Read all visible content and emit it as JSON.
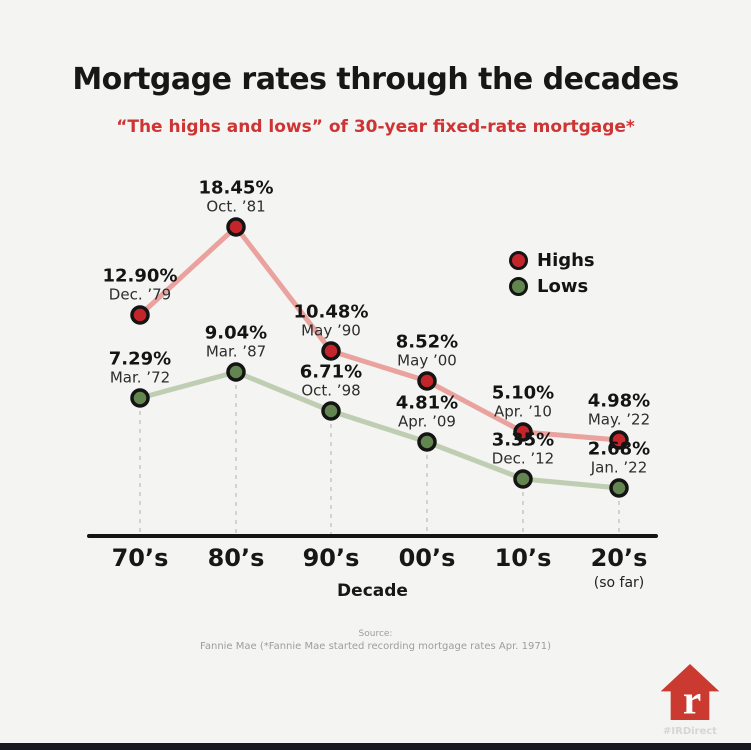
{
  "page": {
    "title": "Mortgage rates through the decades",
    "subtitle": "“The highs and lows” of 30-year fixed-rate mortgage*",
    "source_label": "Source:",
    "source_text": "Fannie Mae (*Fannie Mae started recording mortgage rates Apr. 1971)",
    "hashtag": "#IRDirect",
    "logo_letter": "r"
  },
  "colors": {
    "background": "#f4f4f2",
    "title_text": "#171717",
    "subtitle_red": "#cf3434",
    "highs_point": "#c4252b",
    "highs_line": "#e9a29d",
    "lows_point": "#63854f",
    "lows_line": "#bfcdb2",
    "point_outline": "#141414",
    "axis": "#141414",
    "dashed_guide": "#c6c6c6",
    "source_gray": "#9d9d9d",
    "logo_red": "#cb3a30",
    "bottom_bar": "#181821"
  },
  "chart_data": {
    "type": "line",
    "xlabel": "Decade",
    "categories": [
      "70’s",
      "80’s",
      "90’s",
      "00’s",
      "10’s",
      "20’s"
    ],
    "x_axis_note": "(so far)",
    "grid": "dashed-vertical-guides",
    "legend_position": "upper-right",
    "ylim": [
      0,
      20
    ],
    "series": [
      {
        "name": "Highs",
        "color": "#c4252b",
        "line_color": "#e9a29d",
        "values": [
          12.9,
          18.45,
          10.48,
          8.52,
          5.1,
          4.98
        ],
        "labels": [
          "12.90%",
          "18.45%",
          "10.48%",
          "8.52%",
          "5.10%",
          "4.98%"
        ],
        "dates": [
          "Dec. ’79",
          "Oct. ’81",
          "May ’90",
          "May ’00",
          "Apr. ’10",
          "May. ’22"
        ]
      },
      {
        "name": "Lows",
        "color": "#63854f",
        "line_color": "#bfcdb2",
        "values": [
          7.29,
          9.04,
          6.71,
          4.81,
          3.35,
          2.68
        ],
        "labels": [
          "7.29%",
          "9.04%",
          "6.71%",
          "4.81%",
          "3.35%",
          "2.68%"
        ],
        "dates": [
          "Mar. ’72",
          "Mar. ’87",
          "Oct. ’98",
          "Apr. ’09",
          "Dec. ’12",
          "Jan. ’22"
        ]
      }
    ]
  }
}
